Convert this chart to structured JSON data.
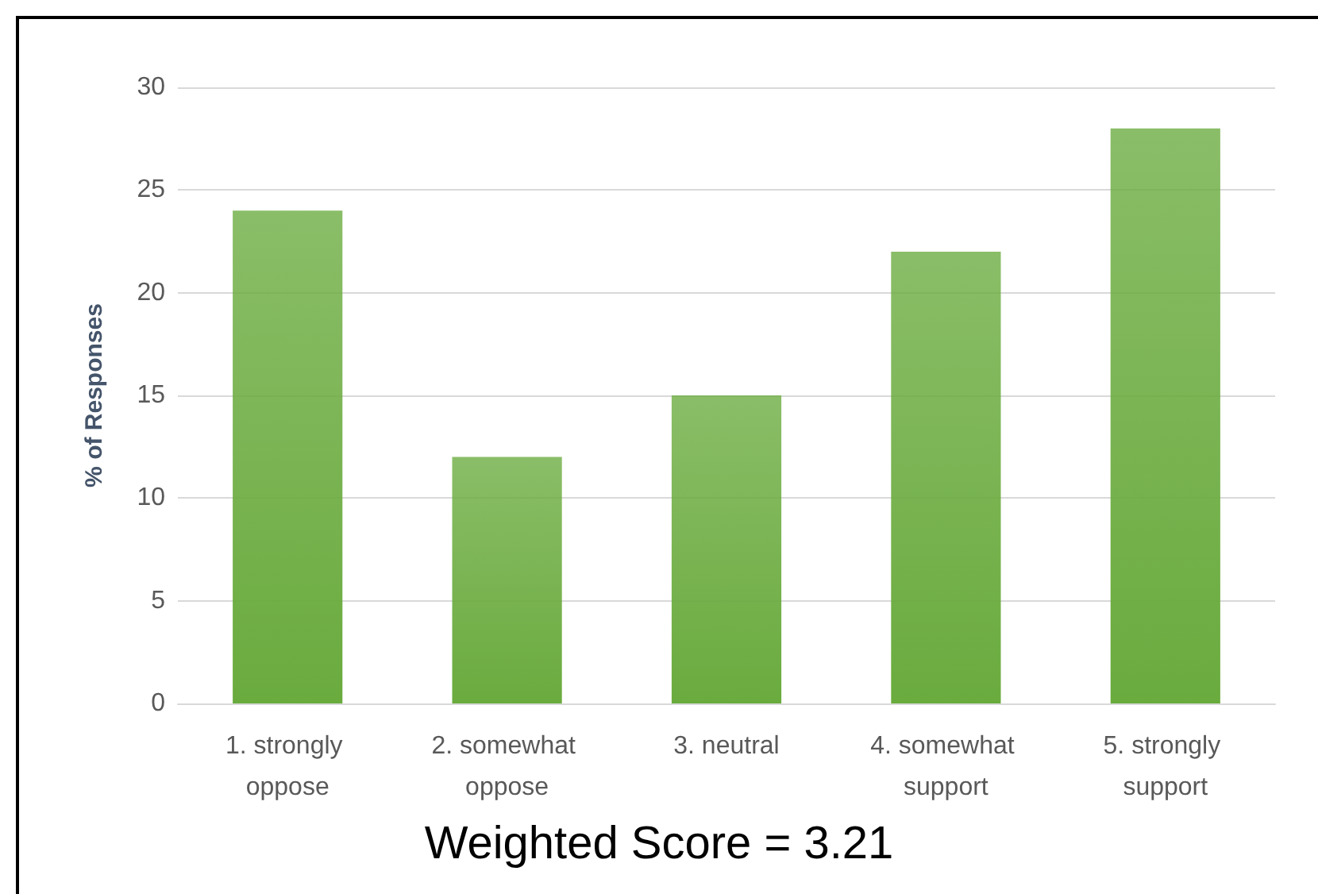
{
  "chart_data": {
    "type": "bar",
    "ylabel": "% of Responses",
    "categories": [
      "1. strongly oppose",
      "2. somewhat oppose",
      "3. neutral",
      "4. somewhat support",
      "5. strongly support"
    ],
    "values": [
      24,
      12,
      15,
      22,
      28
    ],
    "color": "#6aab3e",
    "ylim": [
      0,
      30
    ],
    "yticks": [
      0,
      5,
      10,
      15,
      20,
      25,
      30
    ],
    "grid": "y",
    "annotations": [
      "Weighted Score = 3.21"
    ]
  }
}
